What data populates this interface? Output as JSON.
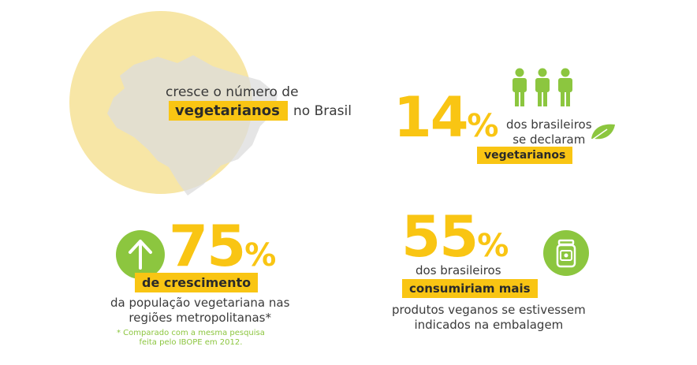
{
  "colors": {
    "accent_yellow": "#f9c513",
    "accent_green": "#8cc63f",
    "map_gray": "#dcdcdc",
    "sun_yellow": "#f7e6a6"
  },
  "header": {
    "line1": "cresce o número de",
    "highlight": "vegetarianos",
    "line2_end": "no Brasil"
  },
  "stat1": {
    "number": "14",
    "percent": "%",
    "desc_line1": "dos brasileiros",
    "desc_line2": "se declaram",
    "highlight": "vegetarianos",
    "icons": [
      "person-icon",
      "person-icon",
      "person-icon",
      "leaf-icon"
    ]
  },
  "stat2": {
    "number": "75",
    "percent": "%",
    "icon": "arrow-up-icon",
    "highlight": "de crescimento",
    "desc_line1": "da população vegetariana nas",
    "desc_line2": "regiões metropolitanas*",
    "footnote_line1": "* Comparado com a mesma pesquisa",
    "footnote_line2": "feita pelo IBOPE em 2012."
  },
  "stat3": {
    "number": "55",
    "percent": "%",
    "icon": "jar-icon",
    "desc_line1": "dos brasileiros",
    "highlight": "consumiriam mais",
    "desc_line2": "produtos veganos se estivessem",
    "desc_line3": "indicados na embalagem"
  }
}
